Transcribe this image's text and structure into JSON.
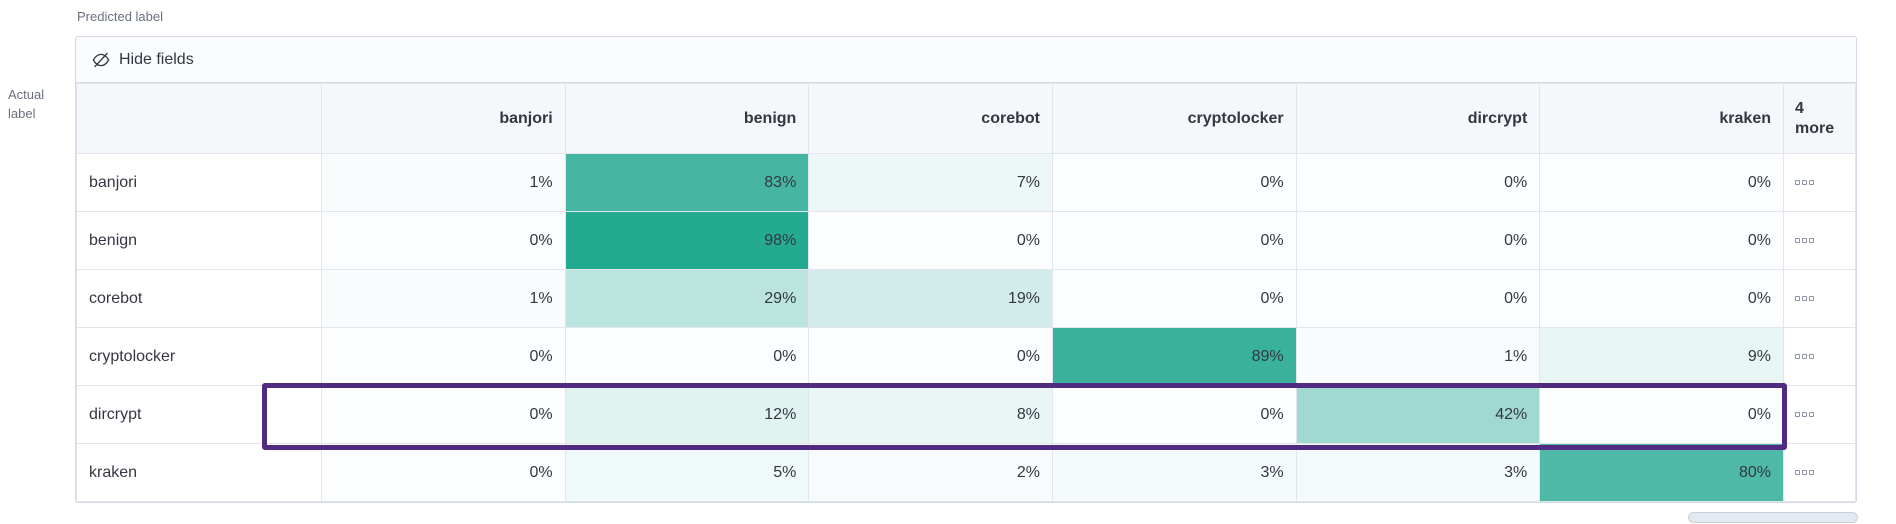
{
  "axis_labels": {
    "predicted": "Predicted label",
    "actual_line1": "Actual",
    "actual_line2": "label"
  },
  "toolbar": {
    "hide_fields_label": "Hide fields",
    "hide_fields_icon": "eye-closed-icon"
  },
  "more_indicator_icon": "ellipsis-boxes-icon",
  "chart_data": {
    "type": "heatmap",
    "value_format": "percent",
    "columns": [
      "banjori",
      "benign",
      "corebot",
      "cryptolocker",
      "dircrypt",
      "kraken"
    ],
    "more_column": "4 more",
    "rows": [
      {
        "label": "banjori",
        "values": [
          1,
          83,
          7,
          0,
          0,
          0
        ],
        "highlighted": false
      },
      {
        "label": "benign",
        "values": [
          0,
          98,
          0,
          0,
          0,
          0
        ],
        "highlighted": false
      },
      {
        "label": "corebot",
        "values": [
          1,
          29,
          19,
          0,
          0,
          0
        ],
        "highlighted": false
      },
      {
        "label": "cryptolocker",
        "values": [
          0,
          0,
          0,
          89,
          1,
          9
        ],
        "highlighted": false
      },
      {
        "label": "dircrypt",
        "values": [
          0,
          12,
          8,
          0,
          42,
          0
        ],
        "highlighted": true
      },
      {
        "label": "kraken",
        "values": [
          0,
          5,
          2,
          3,
          3,
          80
        ],
        "highlighted": false
      }
    ],
    "colors": {
      "heat_min": "#fbfdfe",
      "heat_max": "#21a890",
      "header_bg": "#f5f7fa",
      "highlight_border": "#512b81"
    },
    "legend_position": "none",
    "grid": true
  }
}
